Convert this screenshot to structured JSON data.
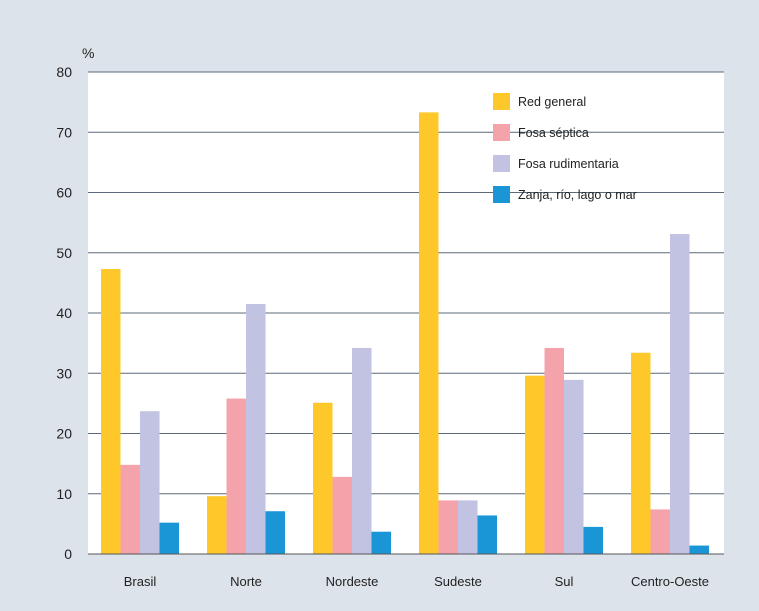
{
  "chart_data": {
    "type": "bar",
    "unit_label": "%",
    "ylim": [
      0,
      80
    ],
    "yticks": [
      0,
      10,
      20,
      30,
      40,
      50,
      60,
      70,
      80
    ],
    "grid": true,
    "legend_position": "top-right",
    "categories": [
      "Brasil",
      "Norte",
      "Nordeste",
      "Sudeste",
      "Sul",
      "Centro-Oeste"
    ],
    "series": [
      {
        "name": "Red general",
        "color": "#ffc82a",
        "values": [
          47.3,
          9.6,
          25.1,
          73.3,
          29.6,
          33.4
        ]
      },
      {
        "name": "Fosa séptica",
        "color": "#f4a3ab",
        "values": [
          14.8,
          25.8,
          12.8,
          8.9,
          34.2,
          7.4
        ]
      },
      {
        "name": "Fosa rudimentaria",
        "color": "#c2c3e2",
        "values": [
          23.7,
          41.5,
          34.2,
          8.9,
          28.9,
          53.1
        ]
      },
      {
        "name": "Zanja, río, lago o mar",
        "color": "#1a96d6",
        "values": [
          5.2,
          7.1,
          3.7,
          6.4,
          4.5,
          1.4
        ]
      }
    ]
  }
}
